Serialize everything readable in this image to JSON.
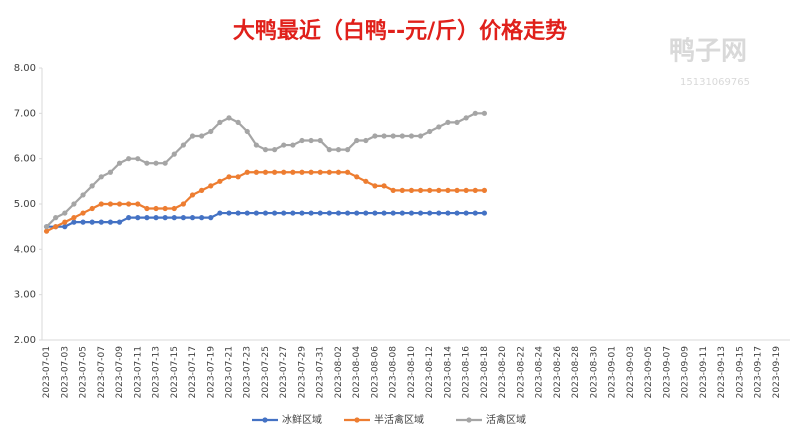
{
  "chart_data": {
    "type": "line",
    "title": "大鸭最近（白鸭--元/斤）价格走势",
    "annotations": [
      "鸭子网",
      "15131069765"
    ],
    "categories": [
      "2023-07-01",
      null,
      "2023-07-03",
      null,
      "2023-07-05",
      null,
      "2023-07-07",
      null,
      "2023-07-09",
      null,
      "2023-07-11",
      null,
      "2023-07-13",
      null,
      "2023-07-15",
      null,
      "2023-07-17",
      null,
      "2023-07-19",
      null,
      "2023-07-21",
      null,
      "2023-07-23",
      null,
      "2023-07-25",
      null,
      "2023-07-27",
      null,
      "2023-07-29",
      null,
      "2023-07-31",
      null,
      "2023-08-02",
      null,
      "2023-08-04",
      null,
      "2023-08-06",
      null,
      "2023-08-08",
      null,
      "2023-08-10",
      null,
      "2023-08-12",
      null,
      "2023-08-14",
      null,
      "2023-08-16",
      null,
      "2023-08-18",
      null,
      "2023-08-20",
      null,
      "2023-08-22",
      null,
      "2023-08-24",
      null,
      "2023-08-26",
      null,
      "2023-08-28",
      null,
      "2023-08-30",
      null,
      "2023-09-01",
      null,
      "2023-09-03",
      null,
      "2023-09-05",
      null,
      "2023-09-07",
      null,
      "2023-09-09",
      null,
      "2023-09-11",
      null,
      "2023-09-13",
      null,
      "2023-09-15",
      null,
      "2023-09-17",
      null,
      "2023-09-19",
      null
    ],
    "series": [
      {
        "name": "冰鲜区域",
        "color": "#4472c4",
        "values": [
          4.5,
          4.5,
          4.5,
          4.6,
          4.6,
          4.6,
          4.6,
          4.6,
          4.6,
          4.7,
          4.7,
          4.7,
          4.7,
          4.7,
          4.7,
          4.7,
          4.7,
          4.7,
          4.7,
          4.8,
          4.8,
          4.8,
          4.8,
          4.8,
          4.8,
          4.8,
          4.8,
          4.8,
          4.8,
          4.8,
          4.8,
          4.8,
          4.8,
          4.8,
          4.8,
          4.8,
          4.8,
          4.8,
          4.8,
          4.8,
          4.8,
          4.8,
          4.8,
          4.8,
          4.8,
          4.8,
          4.8,
          4.8,
          4.8,
          null,
          null,
          null,
          null,
          null,
          null,
          null,
          null,
          null,
          null,
          null,
          null,
          null,
          null,
          null,
          null,
          null,
          null,
          null,
          null,
          null,
          null,
          null,
          null,
          null,
          null,
          null,
          null,
          null,
          null,
          null,
          null,
          null
        ]
      },
      {
        "name": "半活禽区域",
        "color": "#ed7d31",
        "values": [
          4.4,
          4.5,
          4.6,
          4.7,
          4.8,
          4.9,
          5.0,
          5.0,
          5.0,
          5.0,
          5.0,
          4.9,
          4.9,
          4.9,
          4.9,
          5.0,
          5.2,
          5.3,
          5.4,
          5.5,
          5.6,
          5.6,
          5.7,
          5.7,
          5.7,
          5.7,
          5.7,
          5.7,
          5.7,
          5.7,
          5.7,
          5.7,
          5.7,
          5.7,
          5.6,
          5.5,
          5.4,
          5.4,
          5.3,
          5.3,
          5.3,
          5.3,
          5.3,
          5.3,
          5.3,
          5.3,
          5.3,
          5.3,
          5.3,
          null,
          null,
          null,
          null,
          null,
          null,
          null,
          null,
          null,
          null,
          null,
          null,
          null,
          null,
          null,
          null,
          null,
          null,
          null,
          null,
          null,
          null,
          null,
          null,
          null,
          null,
          null,
          null,
          null,
          null,
          null,
          null,
          null
        ]
      },
      {
        "name": "活禽区域",
        "color": "#a5a5a5",
        "values": [
          4.5,
          4.7,
          4.8,
          5.0,
          5.2,
          5.4,
          5.6,
          5.7,
          5.9,
          6.0,
          6.0,
          5.9,
          5.9,
          5.9,
          6.1,
          6.3,
          6.5,
          6.5,
          6.6,
          6.8,
          6.9,
          6.8,
          6.6,
          6.3,
          6.2,
          6.2,
          6.3,
          6.3,
          6.4,
          6.4,
          6.4,
          6.2,
          6.2,
          6.2,
          6.4,
          6.4,
          6.5,
          6.5,
          6.5,
          6.5,
          6.5,
          6.5,
          6.6,
          6.7,
          6.8,
          6.8,
          6.9,
          7.0,
          7.0,
          null,
          null,
          null,
          null,
          null,
          null,
          null,
          null,
          null,
          null,
          null,
          null,
          null,
          null,
          null,
          null,
          null,
          null,
          null,
          null,
          null,
          null,
          null,
          null,
          null,
          null,
          null,
          null,
          null,
          null,
          null,
          null,
          null
        ]
      }
    ],
    "ylim": [
      2,
      8
    ],
    "yticks": [
      {
        "value": 2,
        "label": "2.00"
      },
      {
        "value": 3,
        "label": "3.00"
      },
      {
        "value": 4,
        "label": "4.00"
      },
      {
        "value": 5,
        "label": "5.00"
      },
      {
        "value": 6,
        "label": "6.00"
      },
      {
        "value": 7,
        "label": "7.00"
      },
      {
        "value": 8,
        "label": "8.00"
      }
    ],
    "grid": false,
    "legend": "bottom"
  }
}
